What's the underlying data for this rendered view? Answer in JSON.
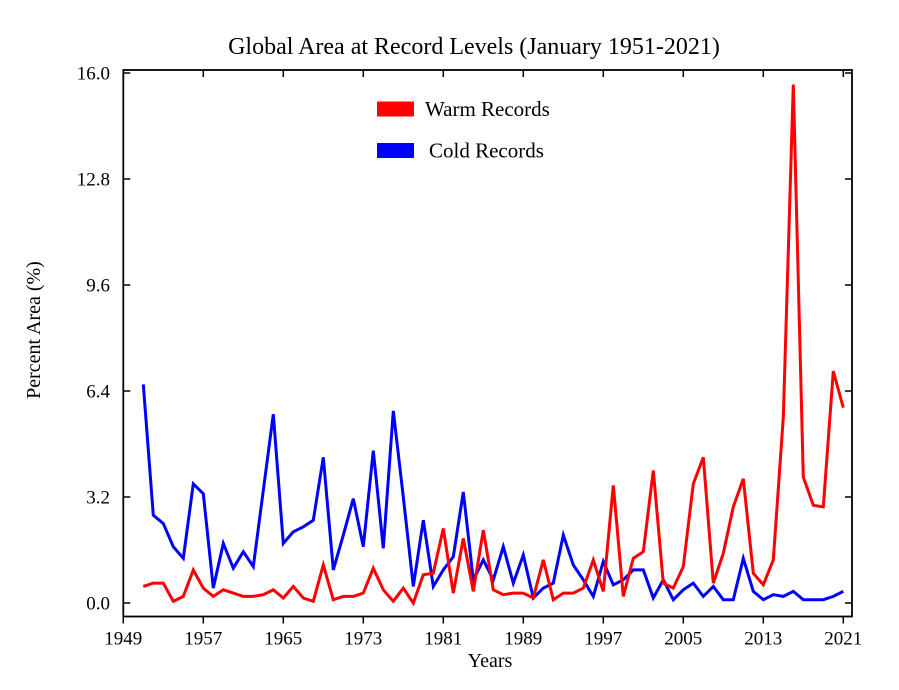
{
  "chart_data": {
    "type": "line",
    "title": "Global Area at Record Levels (January 1951-2021)",
    "xlabel": "Years",
    "ylabel": "Percent Area (%)",
    "grid": false,
    "legend_position": "top-center-inside",
    "xlim": [
      1949,
      2021.9
    ],
    "ylim": [
      -0.4,
      16.1
    ],
    "x_tick_years": [
      1949,
      1957,
      1965,
      1973,
      1981,
      1989,
      1997,
      2005,
      2013,
      2021
    ],
    "x_tick_labels": [
      "1949",
      "1957",
      "1965",
      "1973",
      "1981",
      "1989",
      "1997",
      "2005",
      "2013",
      "2021"
    ],
    "y_tick_values": [
      0.0,
      3.2,
      6.4,
      9.6,
      12.8,
      16.0
    ],
    "y_tick_labels": [
      "0.0",
      "3.2",
      "6.4",
      "9.6",
      "12.8",
      "16.0"
    ],
    "years": [
      1951,
      1952,
      1953,
      1954,
      1955,
      1956,
      1957,
      1958,
      1959,
      1960,
      1961,
      1962,
      1963,
      1964,
      1965,
      1966,
      1967,
      1968,
      1969,
      1970,
      1971,
      1972,
      1973,
      1974,
      1975,
      1976,
      1977,
      1978,
      1979,
      1980,
      1981,
      1982,
      1983,
      1984,
      1985,
      1986,
      1987,
      1988,
      1989,
      1990,
      1991,
      1992,
      1993,
      1994,
      1995,
      1996,
      1997,
      1998,
      1999,
      2000,
      2001,
      2002,
      2003,
      2004,
      2005,
      2006,
      2007,
      2008,
      2009,
      2010,
      2011,
      2012,
      2013,
      2014,
      2015,
      2016,
      2017,
      2018,
      2019,
      2020,
      2021
    ],
    "series": [
      {
        "name": "Warm Records",
        "color": "#ff0000",
        "values": [
          0.5,
          0.6,
          0.6,
          0.05,
          0.2,
          1.0,
          0.45,
          0.2,
          0.4,
          0.3,
          0.2,
          0.2,
          0.25,
          0.4,
          0.15,
          0.5,
          0.15,
          0.05,
          1.15,
          0.1,
          0.2,
          0.2,
          0.3,
          1.05,
          0.4,
          0.05,
          0.45,
          0.0,
          0.85,
          0.9,
          2.25,
          0.3,
          1.95,
          0.35,
          2.2,
          0.4,
          0.25,
          0.3,
          0.3,
          0.15,
          1.3,
          0.1,
          0.3,
          0.3,
          0.45,
          1.3,
          0.35,
          3.55,
          0.2,
          1.35,
          1.55,
          4.0,
          0.6,
          0.45,
          1.1,
          3.6,
          4.4,
          0.6,
          1.5,
          2.9,
          3.75,
          0.9,
          0.55,
          1.3,
          5.6,
          15.65,
          3.8,
          2.95,
          2.9,
          7.0,
          5.9
        ]
      },
      {
        "name": "Cold Records",
        "color": "#0000ff",
        "values": [
          6.6,
          2.65,
          2.4,
          1.7,
          1.35,
          3.6,
          3.3,
          0.45,
          1.8,
          1.05,
          1.55,
          1.1,
          3.4,
          5.7,
          1.8,
          2.15,
          2.3,
          2.5,
          4.4,
          1.0,
          2.05,
          3.15,
          1.7,
          4.6,
          1.65,
          5.8,
          3.2,
          0.5,
          2.5,
          0.5,
          1.0,
          1.4,
          3.35,
          0.7,
          1.3,
          0.7,
          1.7,
          0.6,
          1.45,
          0.15,
          0.45,
          0.6,
          2.05,
          1.15,
          0.7,
          0.2,
          1.25,
          0.55,
          0.7,
          1.0,
          1.0,
          0.15,
          0.7,
          0.1,
          0.4,
          0.6,
          0.2,
          0.5,
          0.1,
          0.1,
          1.35,
          0.35,
          0.1,
          0.25,
          0.2,
          0.35,
          0.1,
          0.1,
          0.1,
          0.2,
          0.35
        ]
      }
    ]
  }
}
